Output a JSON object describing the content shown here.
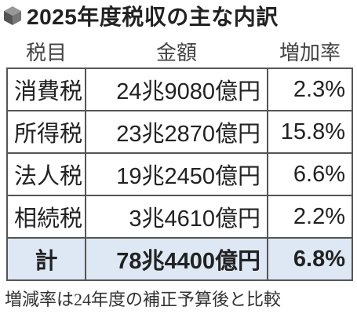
{
  "header": {
    "title": "2025年度税収の主な内訳"
  },
  "table": {
    "columns": [
      "税目",
      "金額",
      "増加率"
    ],
    "rows": [
      [
        "消費税",
        "24兆9080億円",
        "2.3%"
      ],
      [
        "所得税",
        "23兆2870億円",
        "15.8%"
      ],
      [
        "法人税",
        "19兆2450億円",
        "6.6%"
      ],
      [
        "相続税",
        "3兆4610億円",
        "2.2%"
      ]
    ],
    "total": [
      "計",
      "78兆4400億円",
      "6.8%"
    ]
  },
  "footer": {
    "note": "増減率は24年度の補正予算後と比較"
  }
}
